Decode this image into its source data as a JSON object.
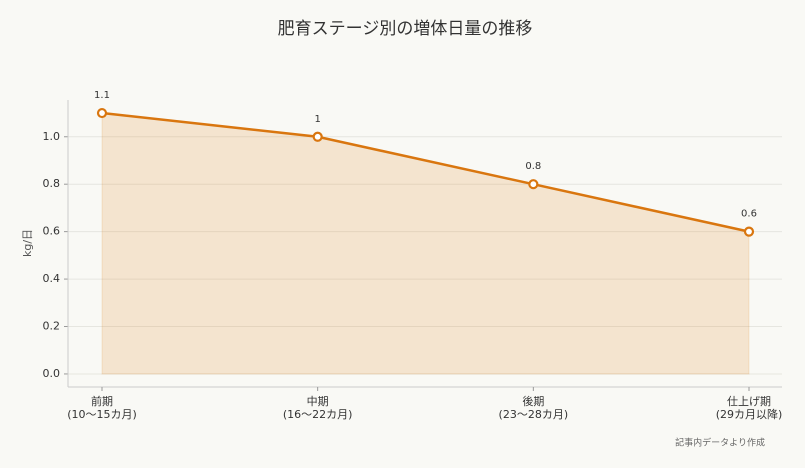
{
  "chart_data": {
    "type": "line",
    "title": "肥育ステージ別の増体日量の推移",
    "y_label": "kg/日",
    "note": "記事内データより作成",
    "categories": [
      "前期\n(10〜15カ月)",
      "中期\n(16〜22カ月)",
      "後期\n(23〜28カ月)",
      "仕上げ期\n(29カ月以降)"
    ],
    "values": [
      1.1,
      1,
      0.8,
      0.6
    ],
    "color": "#d9760f",
    "area": true,
    "grid": true,
    "ylim": [
      -0.055,
      1.155
    ],
    "yticks": [
      {
        "value": 0,
        "label": "0.0"
      },
      {
        "value": 0.2,
        "label": "0.2"
      },
      {
        "value": 0.4,
        "label": "0.4"
      },
      {
        "value": 0.6,
        "label": "0.6"
      },
      {
        "value": 0.8,
        "label": "0.8"
      },
      {
        "value": 1.0,
        "label": "1.0"
      }
    ]
  }
}
